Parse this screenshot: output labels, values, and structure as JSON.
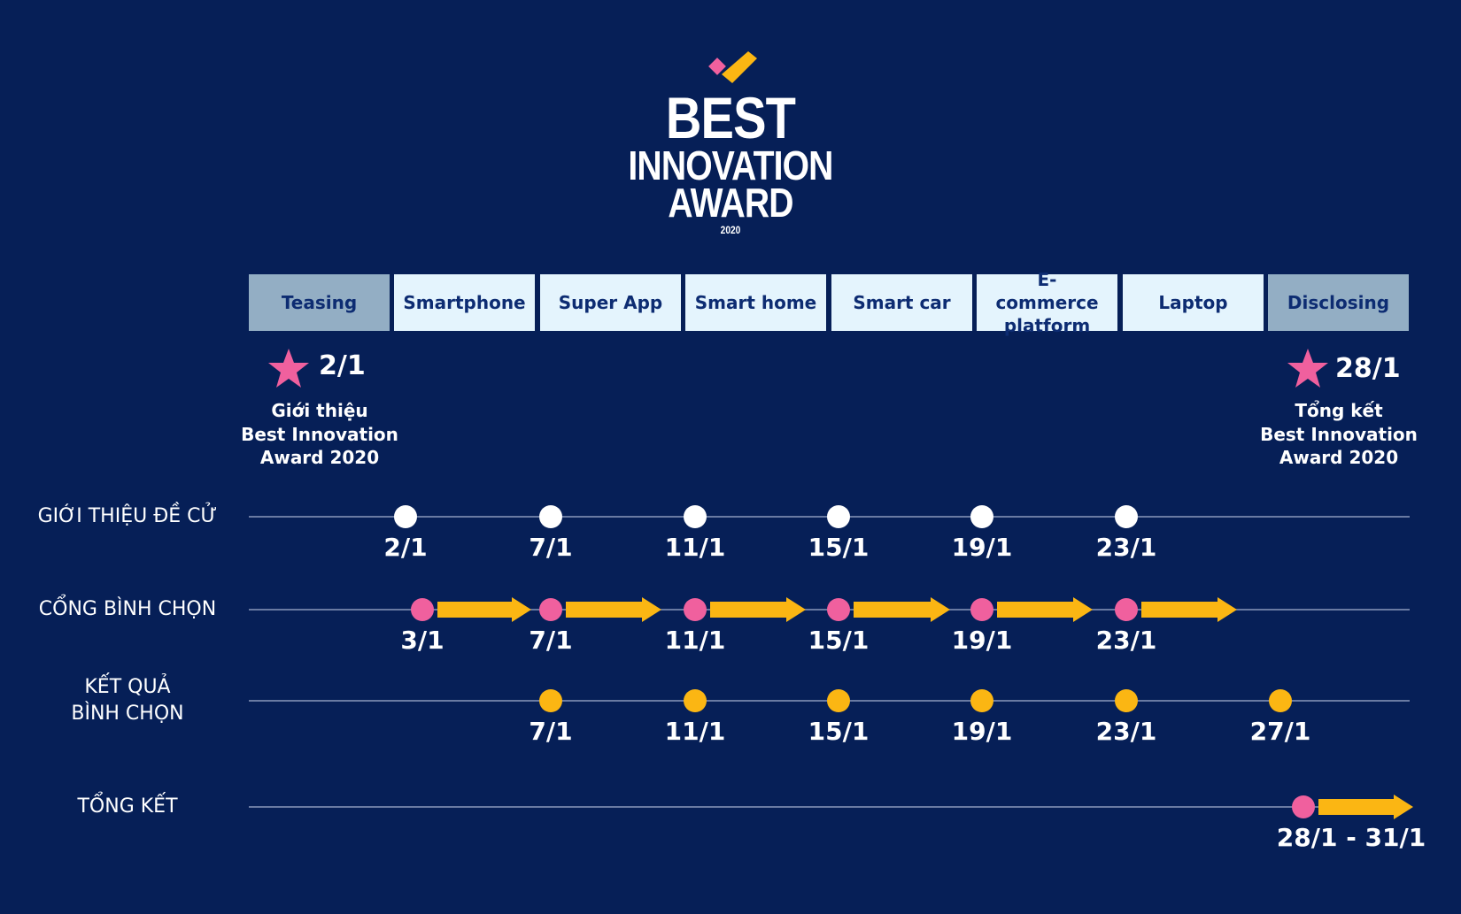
{
  "logo": {
    "line1": "BEST",
    "line2": "INNOVATION",
    "line3": "AWARD",
    "year": "2020",
    "check_colors": [
      "#f0609e",
      "#fbb613"
    ]
  },
  "phases": [
    {
      "label": "Teasing",
      "style": "dark"
    },
    {
      "label": "Smartphone",
      "style": "light"
    },
    {
      "label": "Super App",
      "style": "light"
    },
    {
      "label": "Smart home",
      "style": "light"
    },
    {
      "label": "Smart car",
      "style": "light"
    },
    {
      "label": "E-commerce platform",
      "style": "light"
    },
    {
      "label": "Laptop",
      "style": "light"
    },
    {
      "label": "Disclosing",
      "style": "dark"
    }
  ],
  "milestones": {
    "start": {
      "date": "2/1",
      "lines": [
        "Giới thiệu",
        "Best Innovation",
        "Award 2020"
      ],
      "icon": "star-icon"
    },
    "end": {
      "date": "28/1",
      "lines": [
        "Tổng kết",
        "Best Innovation",
        "Award 2020"
      ],
      "icon": "star-icon"
    }
  },
  "rows": [
    {
      "label": [
        "GIỚI THIỆU ĐỀ CỬ"
      ],
      "marker": "white",
      "arrows": false,
      "dates": [
        "2/1",
        "7/1",
        "11/1",
        "15/1",
        "19/1",
        "23/1"
      ]
    },
    {
      "label": [
        "CỔNG BÌNH CHỌN"
      ],
      "marker": "pink",
      "arrows": true,
      "dates": [
        "3/1",
        "7/1",
        "11/1",
        "15/1",
        "19/1",
        "23/1"
      ]
    },
    {
      "label": [
        "KẾT QUẢ",
        "BÌNH CHỌN"
      ],
      "marker": "yellow",
      "arrows": false,
      "dates": [
        "7/1",
        "11/1",
        "15/1",
        "19/1",
        "23/1",
        "27/1"
      ]
    },
    {
      "label": [
        "TỔNG KẾT"
      ],
      "marker": "pink",
      "arrows": true,
      "dates": [
        "28/1 - 31/1"
      ]
    }
  ],
  "colors": {
    "background": "#061f57",
    "pink": "#f0609e",
    "yellow": "#fbb613",
    "white": "#ffffff",
    "phase_light": "#e4f4fd",
    "phase_dark": "#93aec4",
    "line": "#8a98bb"
  }
}
